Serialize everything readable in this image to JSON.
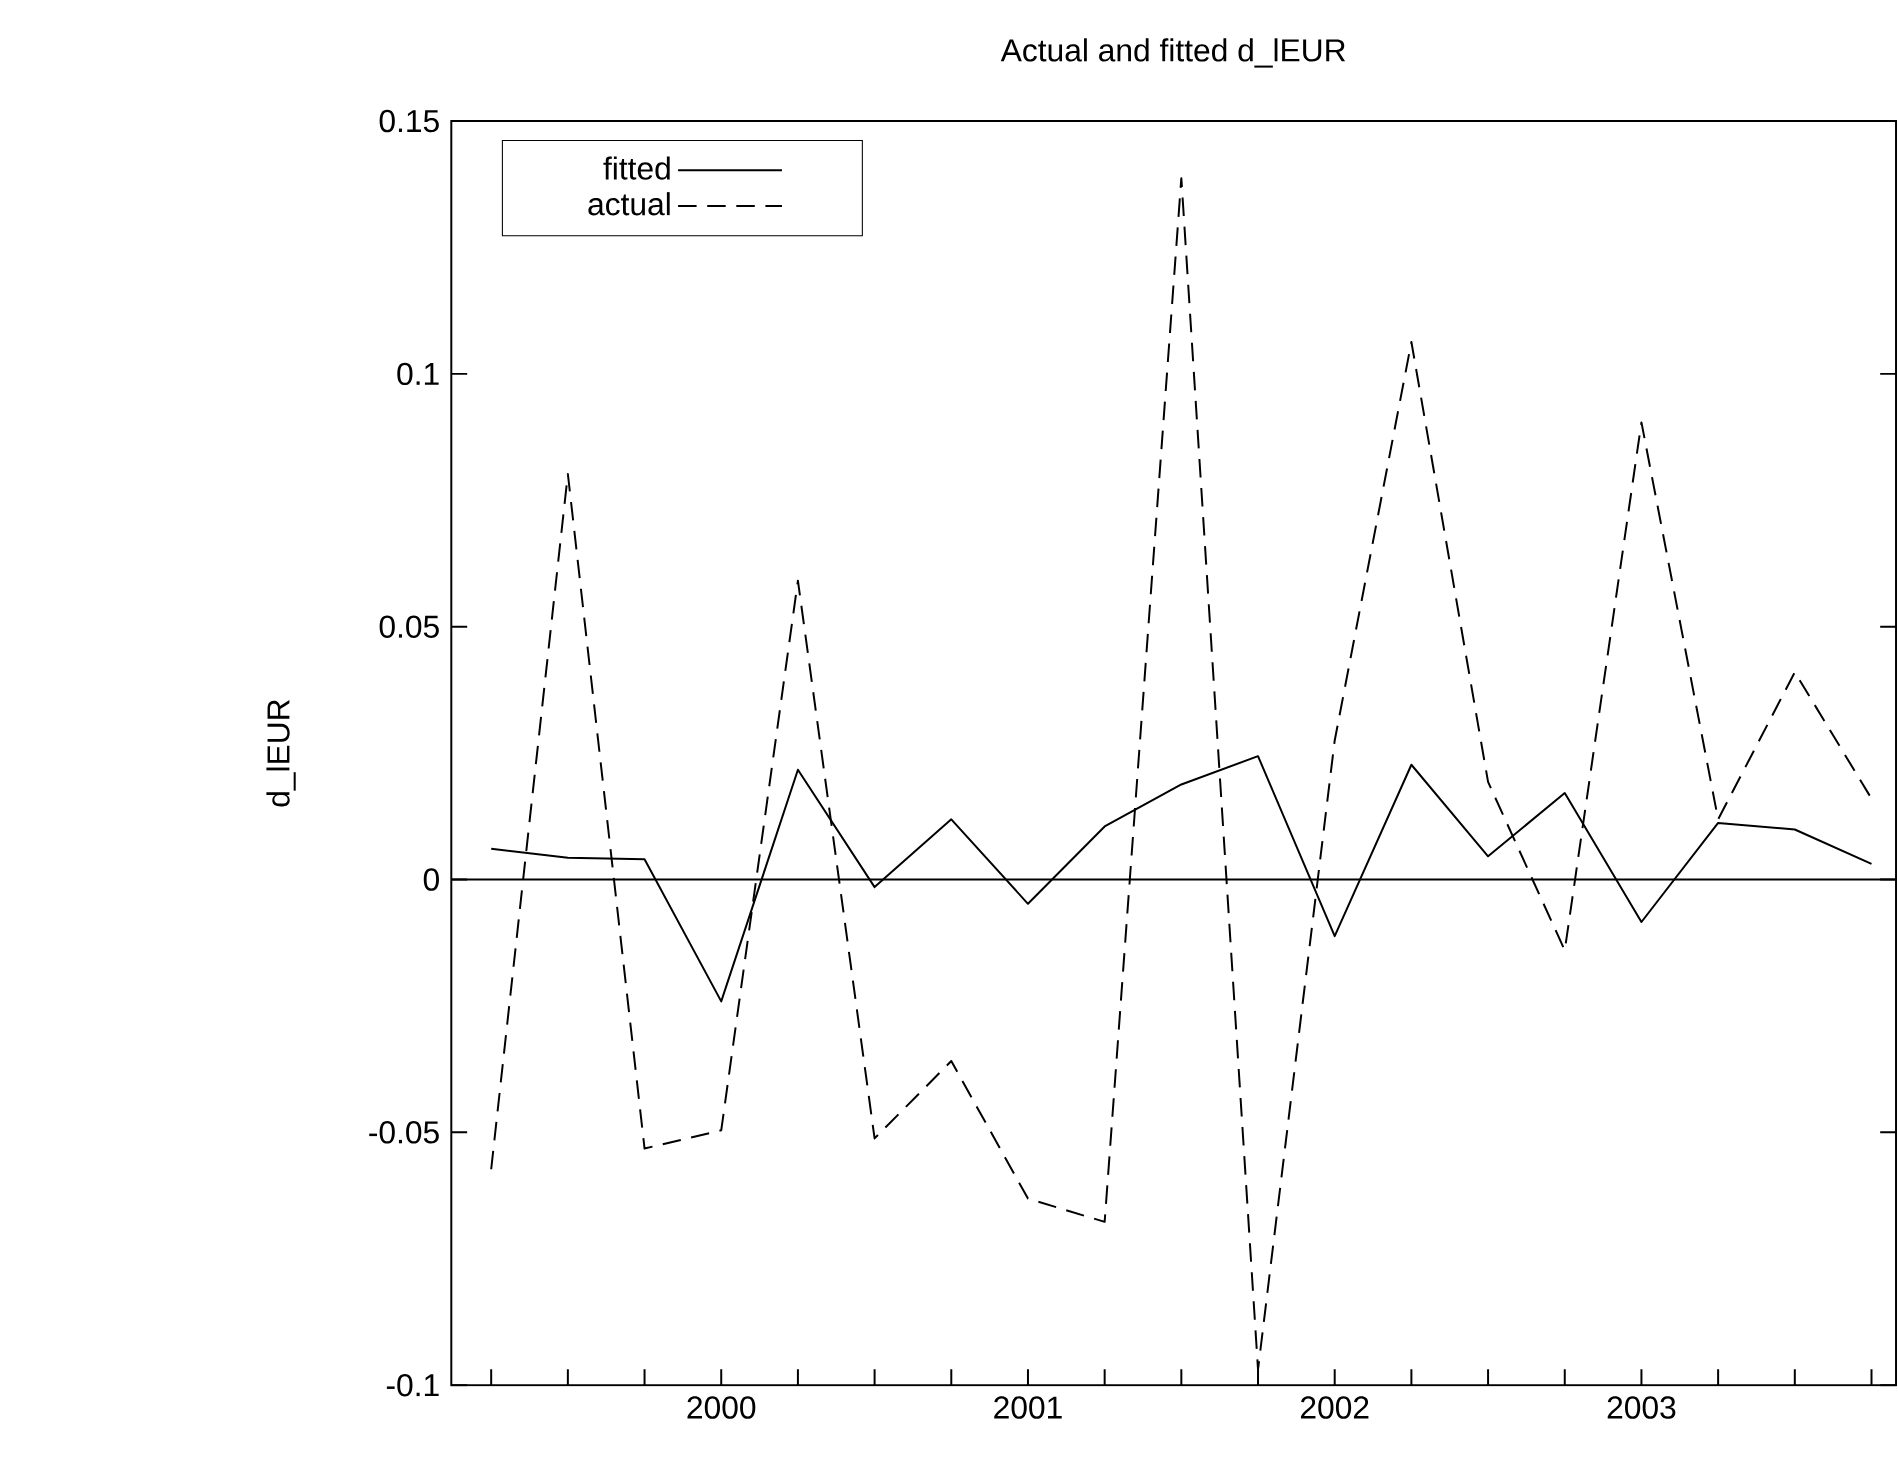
{
  "chart_data": {
    "type": "line",
    "title": "Actual and fitted d_lEUR",
    "ylabel": "d_lEUR",
    "x": [
      1999.25,
      1999.5,
      1999.75,
      2000,
      2000.25,
      2000.5,
      2000.75,
      2001,
      2001.25,
      2001.5,
      2001.75,
      2002,
      2002.25,
      2002.5,
      2002.75,
      2003,
      2003.25,
      2003.5,
      2003.75
    ],
    "series": [
      {
        "name": "fitted",
        "color": "#000000",
        "line_style": "solid",
        "values": [
          0.0061,
          0.0043,
          0.004,
          -0.0241,
          0.0217,
          -0.0015,
          0.0119,
          -0.0048,
          0.0105,
          0.0188,
          0.0244,
          -0.0112,
          0.0227,
          0.0046,
          0.0171,
          -0.0084,
          0.0112,
          0.0099,
          0.0031
        ]
      },
      {
        "name": "actual",
        "color": "#000000",
        "line_style": "dashed",
        "values": [
          -0.0573,
          0.0802,
          -0.0532,
          -0.0496,
          0.0591,
          -0.0512,
          -0.0359,
          -0.0631,
          -0.0677,
          0.1387,
          -0.0969,
          0.0275,
          0.1063,
          0.0193,
          -0.014,
          0.0904,
          0.0119,
          0.041,
          0.016
        ]
      }
    ],
    "xlim": [
      1999.12,
      2003.83
    ],
    "ylim": [
      -0.1,
      0.15
    ],
    "xticks": [
      {
        "value": 1999.25,
        "label": null
      },
      {
        "value": 1999.5,
        "label": null
      },
      {
        "value": 1999.75,
        "label": null
      },
      2000,
      {
        "value": 2000.25,
        "label": null
      },
      {
        "value": 2000.5,
        "label": null
      },
      {
        "value": 2000.75,
        "label": null
      },
      2001,
      {
        "value": 2001.25,
        "label": null
      },
      {
        "value": 2001.5,
        "label": null
      },
      {
        "value": 2001.75,
        "label": null
      },
      2002,
      {
        "value": 2002.25,
        "label": null
      },
      {
        "value": 2002.5,
        "label": null
      },
      {
        "value": 2002.75,
        "label": null
      },
      2003,
      {
        "value": 2003.25,
        "label": null
      },
      {
        "value": 2003.5,
        "label": null
      },
      {
        "value": 2003.75,
        "label": null
      }
    ],
    "yticks": [
      -0.1,
      -0.05,
      0,
      0.05,
      0.1,
      0.15
    ],
    "ref_lines": [
      {
        "axis": "y",
        "value": 0,
        "color": "#000000"
      }
    ],
    "legend": "top left",
    "grid": false
  }
}
